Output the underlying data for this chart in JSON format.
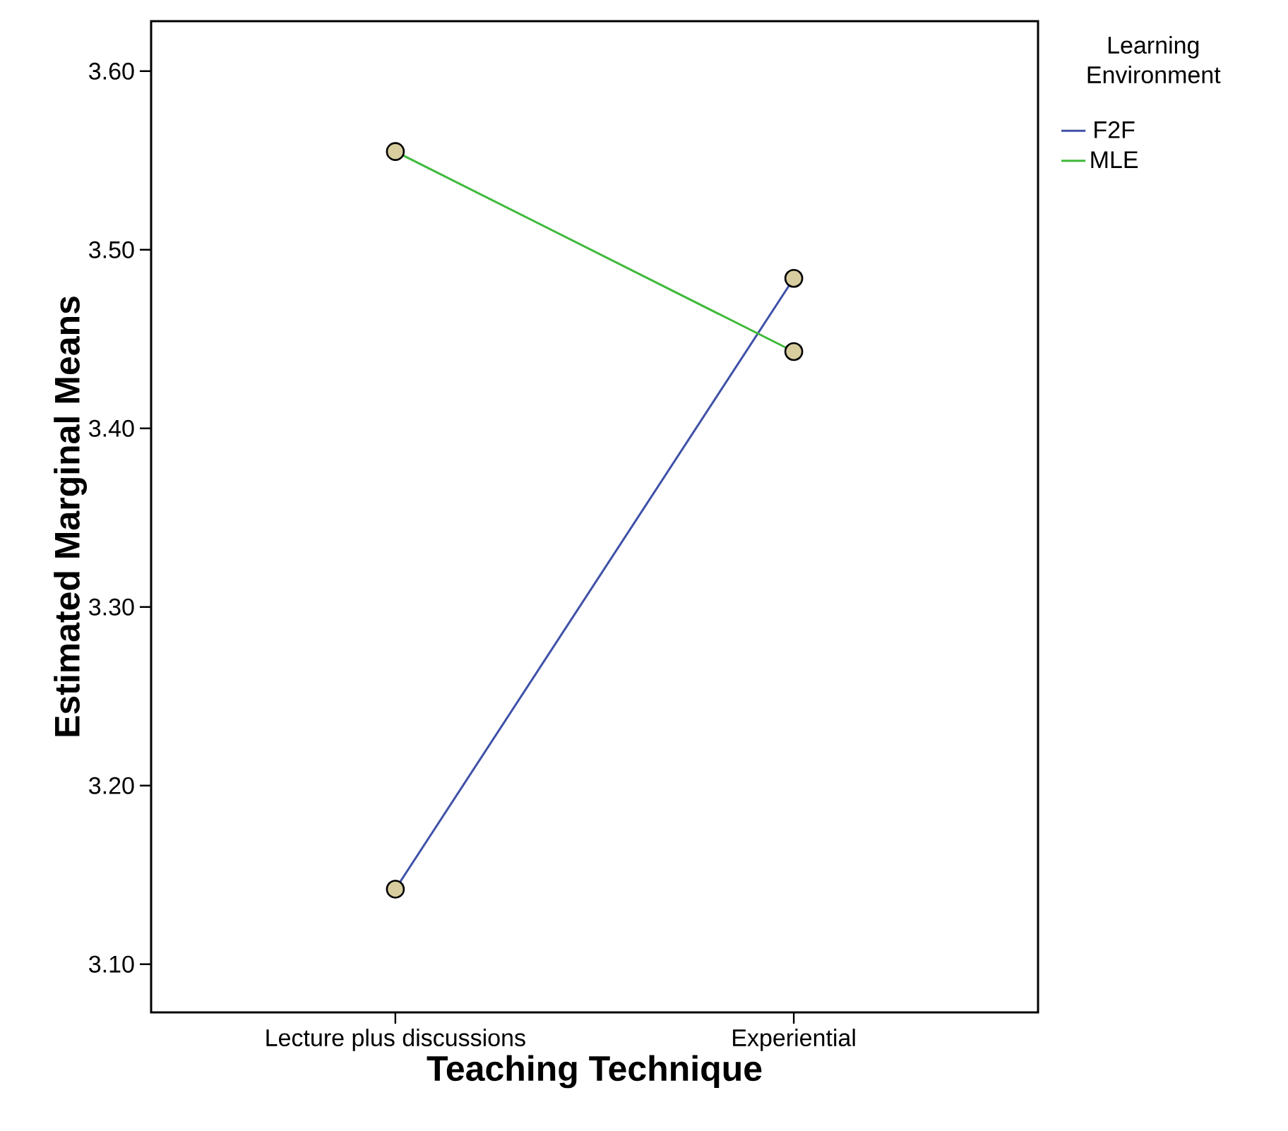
{
  "chart_data": {
    "type": "line",
    "xlabel": "Teaching Technique",
    "ylabel": "Estimated Marginal Means",
    "legend_title": "Learning Environment",
    "categories": [
      "Lecture plus discussions",
      "Experiential"
    ],
    "series": [
      {
        "name": "F2F",
        "color": "#3f51a8",
        "values": [
          3.142,
          3.484
        ]
      },
      {
        "name": "MLE",
        "color": "#3fb93a",
        "values": [
          3.555,
          3.443
        ]
      }
    ],
    "ylim": [
      3.073,
      3.628
    ],
    "yticks": [
      {
        "value": 3.1,
        "label": "3.10"
      },
      {
        "value": 3.2,
        "label": "3.20"
      },
      {
        "value": 3.3,
        "label": "3.30"
      },
      {
        "value": 3.4,
        "label": "3.40"
      },
      {
        "value": 3.5,
        "label": "3.50"
      },
      {
        "value": 3.6,
        "label": "3.60"
      }
    ],
    "marker": "circle",
    "legend": "top right",
    "grid": false
  }
}
